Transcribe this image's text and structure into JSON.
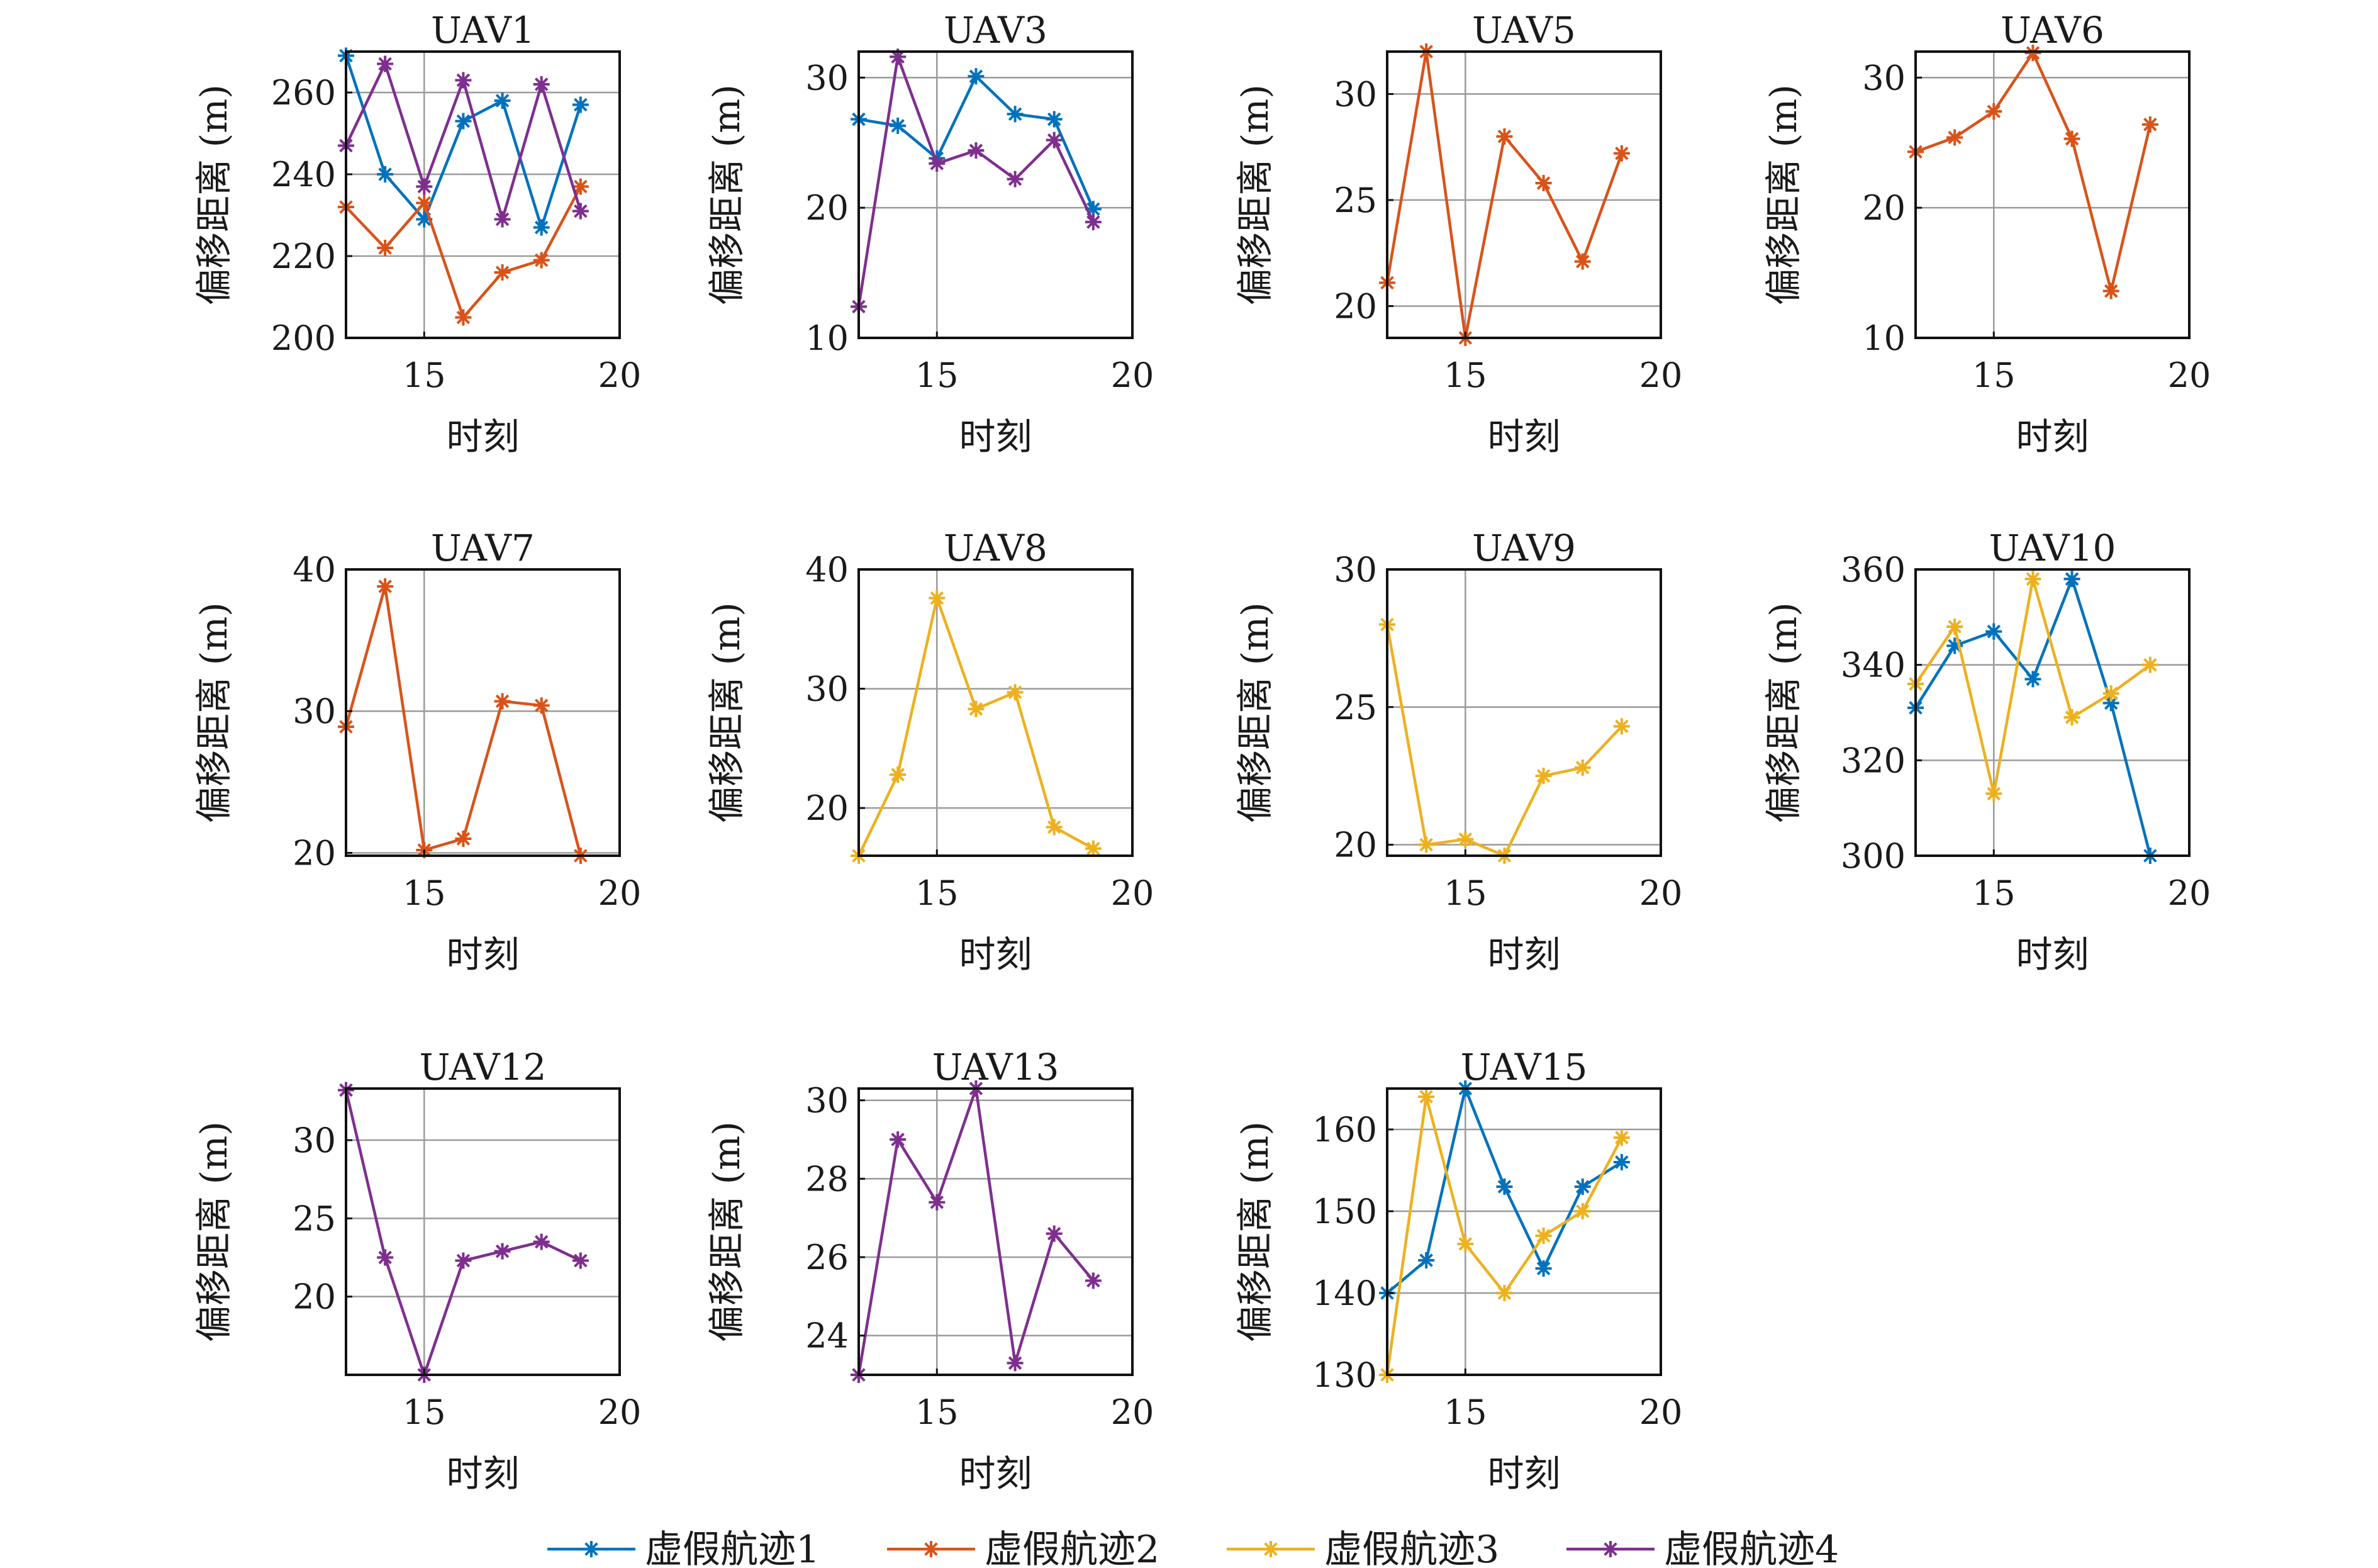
{
  "legend": {
    "entries": [
      {
        "name": "虚假航迹1",
        "color": "#0072BD"
      },
      {
        "name": "虚假航迹2",
        "color": "#D95319"
      },
      {
        "name": "虚假航迹3",
        "color": "#EDB120"
      },
      {
        "name": "虚假航迹4",
        "color": "#7E2F8E"
      }
    ],
    "placement": "bottom-center"
  },
  "chart_data": [
    {
      "type": "line",
      "title": "UAV1",
      "xlabel": "时刻",
      "ylabel": "偏移距离 (m)",
      "xlim": [
        13,
        20
      ],
      "ylim": [
        200,
        270
      ],
      "xticks": [
        15,
        20
      ],
      "yticks": [
        200,
        220,
        240,
        260
      ],
      "grid": true,
      "x": [
        13,
        14,
        15,
        16,
        17,
        18,
        19
      ],
      "series": [
        {
          "track": 0,
          "values": [
            269,
            240,
            229,
            253,
            258,
            227,
            257
          ]
        },
        {
          "track": 1,
          "values": [
            232,
            222,
            233,
            205,
            216,
            219,
            237
          ]
        },
        {
          "track": 3,
          "values": [
            247,
            267,
            237,
            263,
            229,
            262,
            231
          ]
        }
      ]
    },
    {
      "type": "line",
      "title": "UAV3",
      "xlabel": "时刻",
      "ylabel": "偏移距离 (m)",
      "xlim": [
        13,
        20
      ],
      "ylim": [
        10,
        32
      ],
      "xticks": [
        15,
        20
      ],
      "yticks": [
        10,
        20,
        30
      ],
      "grid": true,
      "x": [
        13,
        14,
        15,
        16,
        17,
        18,
        19
      ],
      "series": [
        {
          "track": 0,
          "values": [
            26.8,
            26.3,
            23.8,
            30.1,
            27.2,
            26.8,
            19.9
          ]
        },
        {
          "track": 3,
          "values": [
            12.4,
            31.6,
            23.4,
            24.4,
            22.2,
            25.2,
            18.9
          ]
        }
      ]
    },
    {
      "type": "line",
      "title": "UAV5",
      "xlabel": "时刻",
      "ylabel": "偏移距离 (m)",
      "xlim": [
        13,
        20
      ],
      "ylim": [
        18.5,
        32
      ],
      "xticks": [
        15,
        20
      ],
      "yticks": [
        20,
        25,
        30
      ],
      "grid": true,
      "x": [
        13,
        14,
        15,
        16,
        17,
        18,
        19
      ],
      "series": [
        {
          "track": 1,
          "values": [
            21.1,
            32.0,
            18.5,
            28.0,
            25.8,
            22.1,
            27.2
          ]
        }
      ]
    },
    {
      "type": "line",
      "title": "UAV6",
      "xlabel": "时刻",
      "ylabel": "偏移距离 (m)",
      "xlim": [
        13,
        20
      ],
      "ylim": [
        10,
        32
      ],
      "xticks": [
        15,
        20
      ],
      "yticks": [
        10,
        20,
        30
      ],
      "grid": true,
      "x": [
        13,
        14,
        15,
        16,
        17,
        18,
        19
      ],
      "series": [
        {
          "track": 1,
          "values": [
            24.3,
            25.4,
            27.4,
            31.9,
            25.3,
            13.6,
            26.4
          ]
        }
      ]
    },
    {
      "type": "line",
      "title": "UAV7",
      "xlabel": "时刻",
      "ylabel": "偏移距离 (m)",
      "xlim": [
        13,
        20
      ],
      "ylim": [
        19.8,
        40
      ],
      "xticks": [
        15,
        20
      ],
      "yticks": [
        20,
        30,
        40
      ],
      "grid": true,
      "x": [
        13,
        14,
        15,
        16,
        17,
        18,
        19
      ],
      "series": [
        {
          "track": 1,
          "values": [
            28.9,
            38.8,
            20.2,
            21.0,
            30.7,
            30.4,
            19.8
          ]
        }
      ]
    },
    {
      "type": "line",
      "title": "UAV8",
      "xlabel": "时刻",
      "ylabel": "偏移距离 (m)",
      "xlim": [
        13,
        20
      ],
      "ylim": [
        16,
        40
      ],
      "xticks": [
        15,
        20
      ],
      "yticks": [
        20,
        30,
        40
      ],
      "grid": true,
      "x": [
        13,
        14,
        15,
        16,
        17,
        18,
        19
      ],
      "series": [
        {
          "track": 2,
          "values": [
            16.0,
            22.8,
            37.6,
            28.3,
            29.7,
            18.4,
            16.6
          ]
        }
      ]
    },
    {
      "type": "line",
      "title": "UAV9",
      "xlabel": "时刻",
      "ylabel": "偏移距离 (m)",
      "xlim": [
        13,
        20
      ],
      "ylim": [
        19.6,
        30
      ],
      "xticks": [
        15,
        20
      ],
      "yticks": [
        20,
        25,
        30
      ],
      "grid": true,
      "x": [
        13,
        14,
        15,
        16,
        17,
        18,
        19
      ],
      "series": [
        {
          "track": 2,
          "values": [
            28.0,
            20.0,
            20.2,
            19.6,
            22.5,
            22.8,
            24.3
          ]
        }
      ]
    },
    {
      "type": "line",
      "title": "UAV10",
      "xlabel": "时刻",
      "ylabel": "偏移距离 (m)",
      "xlim": [
        13,
        20
      ],
      "ylim": [
        300,
        360
      ],
      "xticks": [
        15,
        20
      ],
      "yticks": [
        300,
        320,
        340,
        360
      ],
      "grid": true,
      "x": [
        13,
        14,
        15,
        16,
        17,
        18,
        19
      ],
      "series": [
        {
          "track": 0,
          "values": [
            331,
            344,
            347,
            337,
            358,
            332,
            300
          ]
        },
        {
          "track": 2,
          "values": [
            336,
            348,
            313,
            358,
            329,
            334,
            340
          ]
        }
      ]
    },
    {
      "type": "line",
      "title": "UAV12",
      "xlabel": "时刻",
      "ylabel": "偏移距离 (m)",
      "xlim": [
        13,
        20
      ],
      "ylim": [
        15,
        33.3
      ],
      "xticks": [
        15,
        20
      ],
      "yticks": [
        20,
        25,
        30
      ],
      "grid": true,
      "x": [
        13,
        14,
        15,
        16,
        17,
        18,
        19
      ],
      "series": [
        {
          "track": 3,
          "values": [
            33.2,
            22.5,
            15.0,
            22.3,
            22.9,
            23.5,
            22.3
          ]
        }
      ]
    },
    {
      "type": "line",
      "title": "UAV13",
      "xlabel": "时刻",
      "ylabel": "偏移距离 (m)",
      "xlim": [
        13,
        20
      ],
      "ylim": [
        23,
        30.3
      ],
      "xticks": [
        15,
        20
      ],
      "yticks": [
        24,
        26,
        28,
        30
      ],
      "grid": true,
      "x": [
        13,
        14,
        15,
        16,
        17,
        18,
        19
      ],
      "series": [
        {
          "track": 3,
          "values": [
            23.0,
            29.0,
            27.4,
            30.3,
            23.3,
            26.6,
            25.4
          ]
        }
      ]
    },
    {
      "type": "line",
      "title": "UAV15",
      "xlabel": "时刻",
      "ylabel": "偏移距离 (m)",
      "xlim": [
        13,
        20
      ],
      "ylim": [
        130,
        165
      ],
      "xticks": [
        15,
        20
      ],
      "yticks": [
        130,
        140,
        150,
        160
      ],
      "grid": true,
      "x": [
        13,
        14,
        15,
        16,
        17,
        18,
        19
      ],
      "series": [
        {
          "track": 0,
          "values": [
            140,
            144,
            165,
            153,
            143,
            153,
            156
          ]
        },
        {
          "track": 2,
          "values": [
            130,
            164,
            146,
            140,
            147,
            150,
            159
          ]
        }
      ]
    }
  ]
}
